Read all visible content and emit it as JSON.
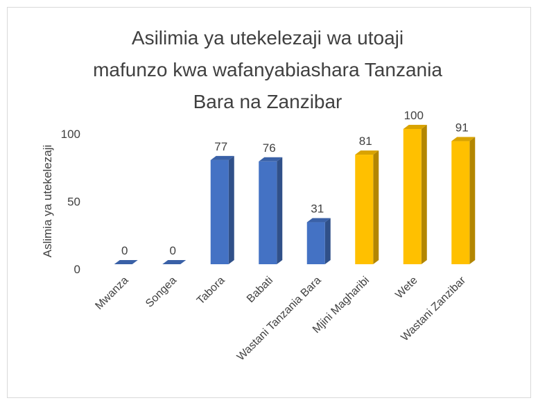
{
  "chart_data": {
    "type": "bar3d",
    "title": "Asilimia ya utekelezaji wa utoaji mafunzo kwa wafanyabiashara Tanzania Bara na Zanzibar",
    "y_label": "Aslimia ya utekelezaji",
    "categories": [
      "Mwanza",
      "Songea",
      "Tabora",
      "Babati",
      "Wastani Tanzania Bara",
      "Mjini Magharibi",
      "Wete",
      "Wastani Zanzibar"
    ],
    "values": [
      0,
      0,
      77,
      76,
      31,
      81,
      100,
      91
    ],
    "colors": [
      "#4472c4",
      "#4472c4",
      "#4472c4",
      "#4472c4",
      "#4472c4",
      "#ffc000",
      "#ffc000",
      "#ffc000"
    ],
    "ylim": [
      0,
      100
    ],
    "yticks": [
      0,
      50,
      100
    ],
    "grid": false
  }
}
